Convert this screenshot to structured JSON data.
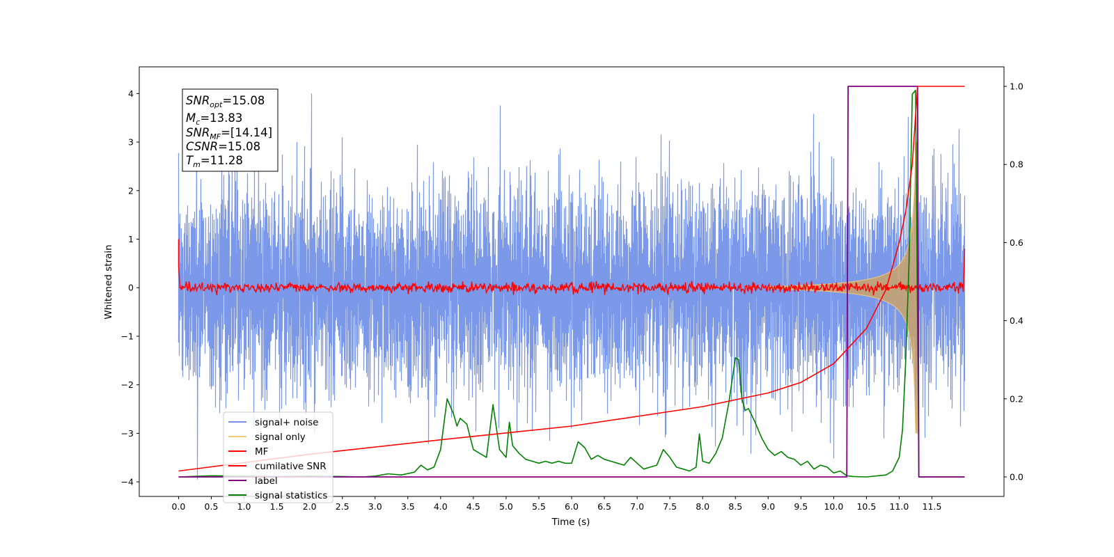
{
  "chart_data": {
    "type": "line",
    "xlabel": "Time (s)",
    "ylabel": "Whitened strain",
    "ylabel_right": "",
    "xlim": [
      -0.6,
      12.6
    ],
    "ylim": [
      -4.3,
      4.55
    ],
    "ylim_right": [
      -0.05,
      1.05
    ],
    "x_ticks": [
      "0.0",
      "0.5",
      "1.0",
      "1.5",
      "2.0",
      "2.5",
      "3.0",
      "3.5",
      "4.0",
      "4.5",
      "5.0",
      "5.5",
      "6.0",
      "6.5",
      "7.0",
      "7.5",
      "8.0",
      "8.5",
      "9.0",
      "9.5",
      "10.0",
      "10.5",
      "11.0",
      "11.5"
    ],
    "y_ticks": [
      "4",
      "3",
      "2",
      "1",
      "0",
      "−1",
      "−2",
      "−3",
      "−4"
    ],
    "y_ticks_right": [
      "1.0",
      "0.8",
      "0.6",
      "0.4",
      "0.2",
      "0.0"
    ],
    "grid": false,
    "legend_position": "lower-left",
    "stats_box": {
      "snr_opt": {
        "sym": "SNR",
        "sub": "opt",
        "value": "=15.08"
      },
      "mc": {
        "sym": "M",
        "sub": "c",
        "value": "=13.83"
      },
      "snr_mf": {
        "sym": "SNR",
        "sub": "MF",
        "value": "=[14.14]"
      },
      "csnr": {
        "sym": "CSNR",
        "sub": "",
        "value": "=15.08"
      },
      "tm": {
        "sym": "T",
        "sub": "m",
        "value": "=11.28"
      }
    },
    "series": [
      {
        "name": "signal+ noise",
        "color": "#7593e8",
        "axis": "left",
        "description": "whitened noise with signal",
        "noise_std": 1.0,
        "x_range": [
          0.0,
          12.0
        ]
      },
      {
        "name": "signal only",
        "color": "#f5c97a",
        "axis": "left",
        "chirp_start": 9.0,
        "chirp_end": 11.28,
        "peak_amplitude": 3.0
      },
      {
        "name": "MF",
        "color": "#ff0000",
        "axis": "left",
        "noise_std": 0.05,
        "x_range": [
          0.0,
          12.0
        ]
      },
      {
        "name": "cumilative SNR",
        "color": "#ff0000",
        "axis": "right",
        "x": [
          0.0,
          2.0,
          4.0,
          6.0,
          8.0,
          9.0,
          9.5,
          10.0,
          10.5,
          10.8,
          11.0,
          11.1,
          11.2,
          11.28,
          12.0
        ],
        "y": [
          0.015,
          0.058,
          0.095,
          0.13,
          0.18,
          0.215,
          0.242,
          0.29,
          0.38,
          0.48,
          0.6,
          0.68,
          0.8,
          1.0,
          1.0
        ]
      },
      {
        "name": "label",
        "color": "#800080",
        "axis": "right",
        "x": [
          0.0,
          10.2,
          10.22,
          11.28,
          11.3,
          12.0
        ],
        "y": [
          0.0,
          0.0,
          1.0,
          1.0,
          0.0,
          0.0
        ]
      },
      {
        "name": "signal statistics",
        "color": "#008000",
        "axis": "right",
        "x": [
          0.0,
          0.5,
          1.0,
          1.5,
          2.0,
          2.5,
          2.8,
          3.0,
          3.2,
          3.4,
          3.6,
          3.7,
          3.8,
          3.9,
          4.0,
          4.1,
          4.2,
          4.25,
          4.3,
          4.4,
          4.5,
          4.6,
          4.7,
          4.8,
          4.9,
          5.0,
          5.05,
          5.1,
          5.2,
          5.3,
          5.4,
          5.5,
          5.6,
          5.7,
          5.8,
          5.9,
          6.0,
          6.1,
          6.2,
          6.3,
          6.4,
          6.5,
          6.6,
          6.7,
          6.8,
          6.9,
          7.0,
          7.1,
          7.2,
          7.3,
          7.4,
          7.5,
          7.6,
          7.7,
          7.8,
          7.9,
          7.95,
          8.0,
          8.1,
          8.2,
          8.3,
          8.4,
          8.5,
          8.55,
          8.6,
          8.65,
          8.7,
          8.8,
          8.9,
          9.0,
          9.1,
          9.2,
          9.3,
          9.4,
          9.5,
          9.6,
          9.7,
          9.8,
          9.9,
          10.0,
          10.1,
          10.2,
          10.3,
          10.5,
          10.8,
          10.9,
          11.0,
          11.05,
          11.1,
          11.15,
          11.2,
          11.25,
          11.3,
          11.35,
          11.5,
          11.6,
          11.8,
          12.0
        ],
        "y": [
          0.0,
          0.003,
          0.002,
          0.001,
          0.002,
          0.001,
          0.0,
          0.002,
          0.008,
          0.005,
          0.012,
          0.03,
          0.018,
          0.025,
          0.07,
          0.2,
          0.16,
          0.13,
          0.15,
          0.135,
          0.07,
          0.06,
          0.05,
          0.185,
          0.07,
          0.05,
          0.14,
          0.08,
          0.06,
          0.045,
          0.04,
          0.035,
          0.04,
          0.035,
          0.04,
          0.035,
          0.035,
          0.09,
          0.075,
          0.045,
          0.055,
          0.045,
          0.04,
          0.035,
          0.03,
          0.05,
          0.035,
          0.02,
          0.025,
          0.03,
          0.07,
          0.05,
          0.025,
          0.02,
          0.015,
          0.025,
          0.11,
          0.04,
          0.035,
          0.06,
          0.1,
          0.19,
          0.305,
          0.3,
          0.2,
          0.17,
          0.175,
          0.14,
          0.1,
          0.07,
          0.055,
          0.065,
          0.05,
          0.045,
          0.03,
          0.04,
          0.02,
          0.03,
          0.025,
          0.01,
          0.015,
          0.003,
          0.001,
          0.0,
          0.005,
          0.015,
          0.05,
          0.12,
          0.3,
          0.55,
          0.98,
          0.99,
          0.0,
          0.0,
          0.0,
          0.0,
          0.0,
          0.0
        ]
      }
    ]
  }
}
